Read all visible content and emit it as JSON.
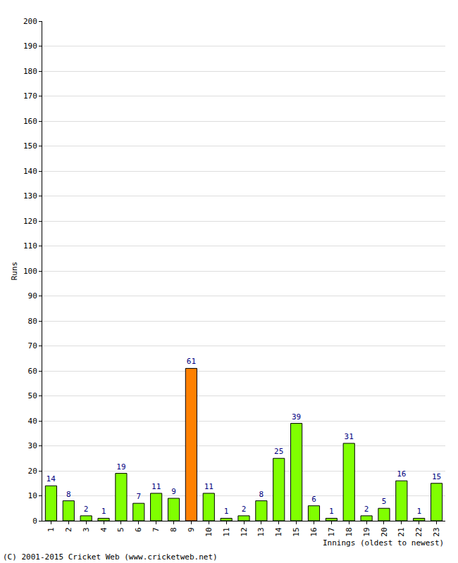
{
  "chart_data": {
    "type": "bar",
    "x_label": "Innings (oldest to newest)",
    "y_label": "Runs",
    "annotations": [
      "(C) 2001-2015 Cricket Web (www.cricketweb.net)"
    ],
    "categories": [
      "1",
      "2",
      "3",
      "4",
      "5",
      "6",
      "7",
      "8",
      "9",
      "10",
      "11",
      "12",
      "13",
      "14",
      "15",
      "16",
      "17",
      "18",
      "19",
      "20",
      "21",
      "22",
      "23"
    ],
    "values": [
      14,
      8,
      2,
      1,
      19,
      7,
      11,
      9,
      61,
      11,
      1,
      2,
      8,
      25,
      39,
      6,
      1,
      31,
      2,
      5,
      16,
      1,
      15
    ],
    "colors": [
      "#80ff00",
      "#80ff00",
      "#80ff00",
      "#80ff00",
      "#80ff00",
      "#80ff00",
      "#80ff00",
      "#80ff00",
      "#ff8000",
      "#80ff00",
      "#80ff00",
      "#80ff00",
      "#80ff00",
      "#80ff00",
      "#80ff00",
      "#80ff00",
      "#80ff00",
      "#80ff00",
      "#80ff00",
      "#80ff00",
      "#80ff00",
      "#80ff00",
      "#80ff00"
    ],
    "ylim": [
      0,
      200
    ],
    "yticks": [
      0,
      10,
      20,
      30,
      40,
      50,
      60,
      70,
      80,
      90,
      100,
      110,
      120,
      130,
      140,
      150,
      160,
      170,
      180,
      190,
      200
    ],
    "grid": true,
    "data_labels": true
  }
}
